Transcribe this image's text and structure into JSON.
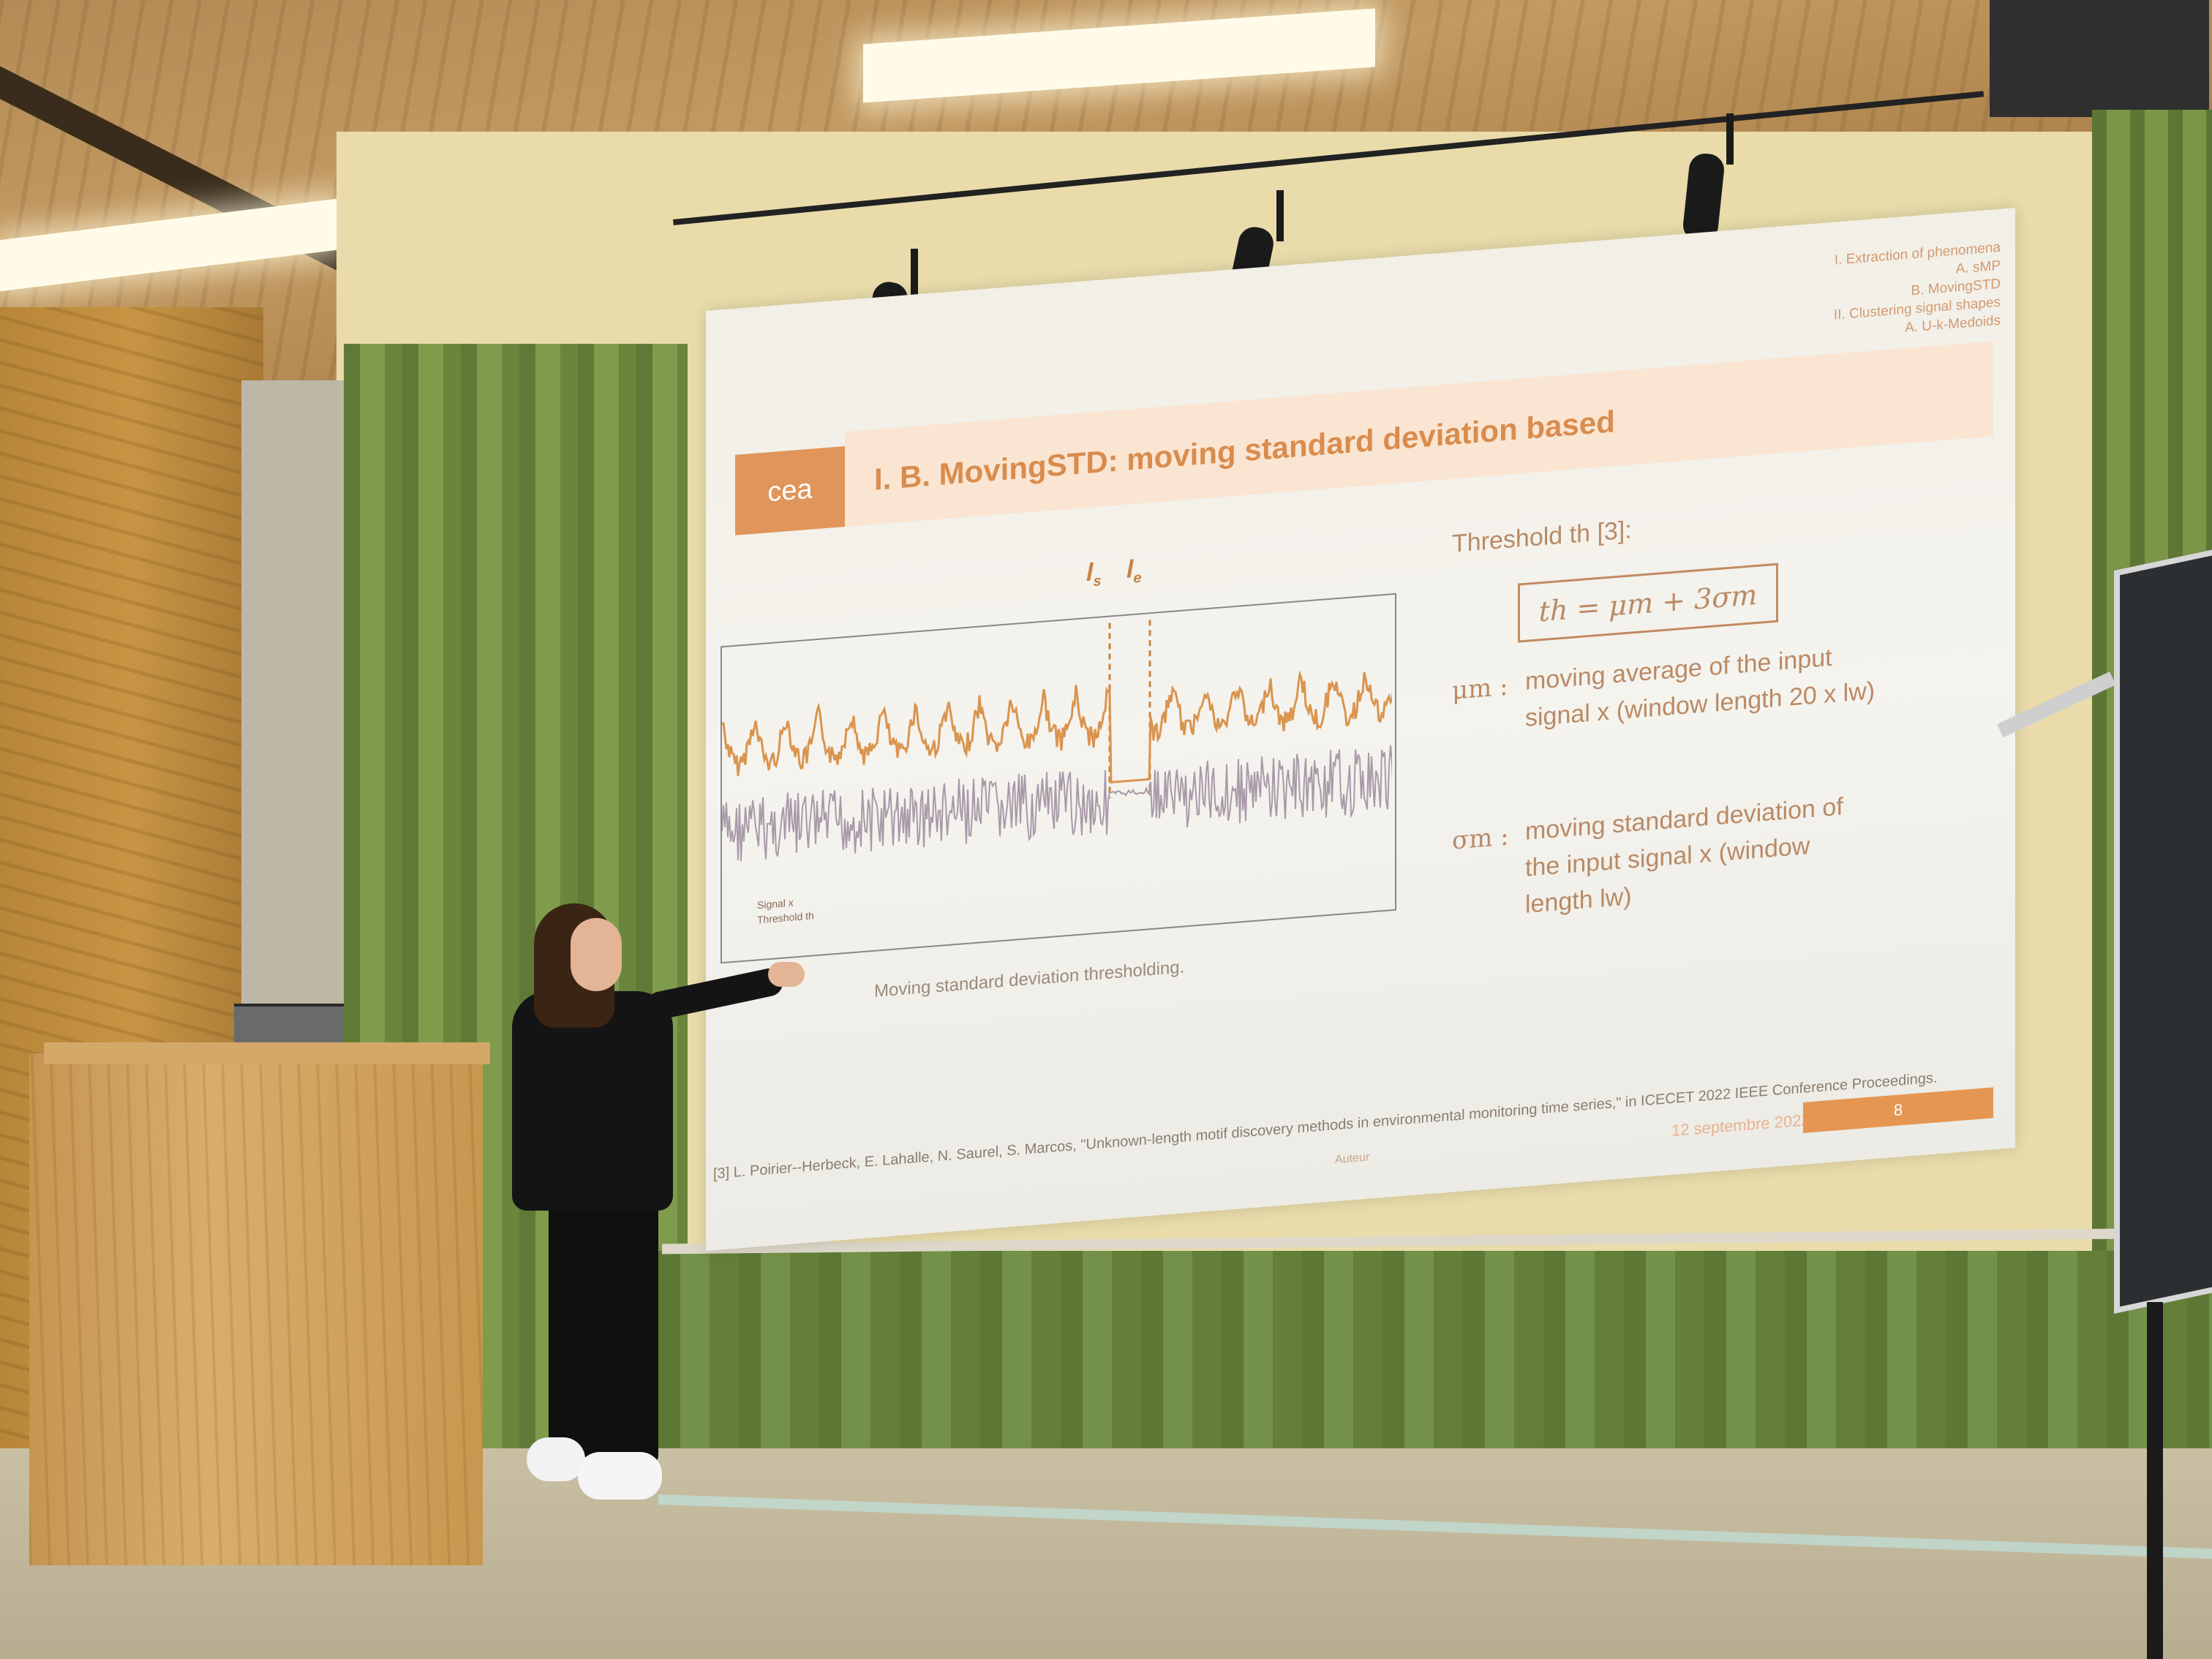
{
  "slide": {
    "logo": "cea",
    "title": "I. B. MovingSTD: moving standard deviation based",
    "outline": [
      "I. Extraction of phenomena",
      "A. sMP",
      "B. MovingSTD",
      "II. Clustering signal shapes",
      "A. U-k-Medoids"
    ],
    "plot": {
      "marker_start": "l",
      "marker_start_sub": "s",
      "marker_end": "l",
      "marker_end_sub": "e",
      "legend_signal": "Signal x",
      "legend_threshold": "Threshold th",
      "caption": "Moving standard deviation thresholding."
    },
    "threshold_label": "Threshold th [3]:",
    "formula": "th = μm + 3σm",
    "mu_symbol": "μm :",
    "mu_definition": "moving average of the input signal x (window length 20 x lw)",
    "sigma_symbol": "σm :",
    "sigma_definition": "moving standard deviation of the input signal x (window length lw)",
    "reference": "[3] L. Poirier--Herbeck, E. Lahalle, N. Saurel, S. Marcos, \"Unknown-length motif discovery methods in environmental monitoring time series,\" in ICECET 2022 IEEE Conference Proceedings.",
    "footer_author": "Auteur",
    "footer_date": "12 septembre 2022",
    "footer_page": "8"
  },
  "colors": {
    "accent": "#e0955a",
    "signal": "#a89aa8",
    "threshold": "#d9944e"
  }
}
